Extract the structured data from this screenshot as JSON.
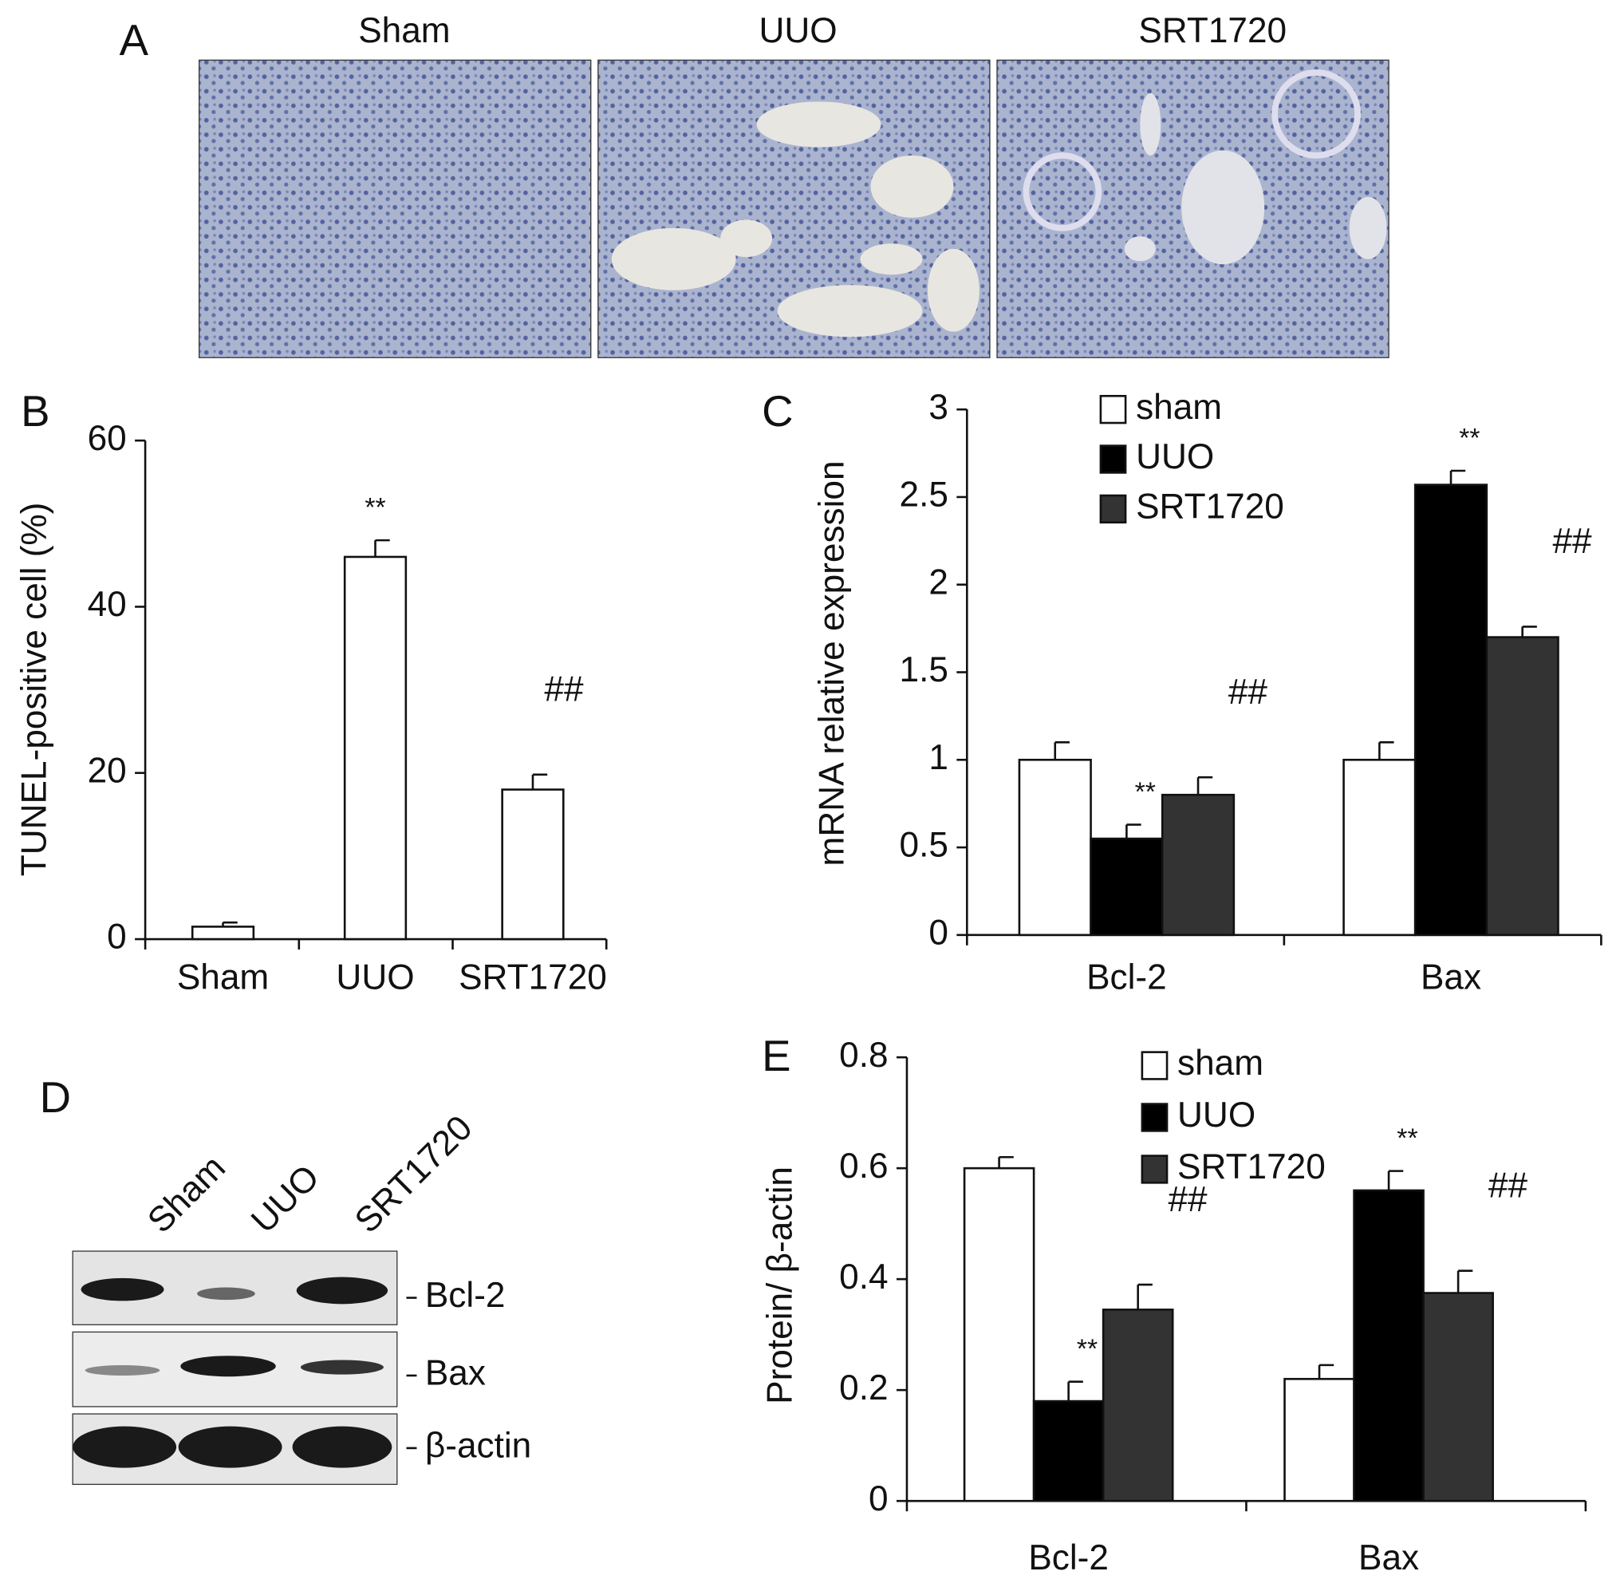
{
  "panels": {
    "A": {
      "letter": "A",
      "labels": [
        "Sham",
        "UUO",
        "SRT1720"
      ]
    },
    "D": {
      "letter": "D",
      "lanes": [
        "Sham",
        "UUO",
        "SRT1720"
      ],
      "bands": [
        "Bcl-2",
        "Bax",
        "β-actin"
      ]
    }
  },
  "chart_data": [
    {
      "type": "bar",
      "letter": "B",
      "ylabel": "TUNEL-positive cell (%)",
      "categories": [
        "Sham",
        "UUO",
        "SRT1720"
      ],
      "values": [
        1.5,
        46,
        18
      ],
      "errors": [
        0.5,
        2,
        1.8
      ],
      "annotations": [
        null,
        "**",
        "##"
      ],
      "color": "#ffffff",
      "ylim": [
        0,
        60
      ],
      "yticks": [
        0,
        20,
        40,
        60
      ]
    },
    {
      "type": "grouped_bar",
      "letter": "C",
      "ylabel": "mRNA relative expression",
      "categories": [
        "Bcl-2",
        "Bax"
      ],
      "series": [
        {
          "name": "sham",
          "color": "#ffffff",
          "values": [
            1,
            1
          ],
          "errors": [
            0.1,
            0.1
          ],
          "annotations": [
            null,
            null
          ]
        },
        {
          "name": "UUO",
          "color": "#000000",
          "values": [
            0.55,
            2.57
          ],
          "errors": [
            0.08,
            0.08
          ],
          "annotations": [
            "**",
            "**"
          ]
        },
        {
          "name": "SRT1720",
          "color": "#333333",
          "values": [
            0.8,
            1.7
          ],
          "errors": [
            0.1,
            0.06
          ],
          "annotations": [
            "##",
            "##"
          ]
        }
      ],
      "ylim": [
        0,
        3
      ],
      "yticks": [
        0,
        0.5,
        1,
        1.5,
        2,
        2.5,
        3
      ]
    },
    {
      "type": "grouped_bar",
      "letter": "E",
      "ylabel": "Protein/ β-actin",
      "categories": [
        "Bcl-2",
        "Bax"
      ],
      "series": [
        {
          "name": "sham",
          "color": "#ffffff",
          "values": [
            0.6,
            0.22
          ],
          "errors": [
            0.02,
            0.025
          ],
          "annotations": [
            null,
            null
          ]
        },
        {
          "name": "UUO",
          "color": "#000000",
          "values": [
            0.18,
            0.56
          ],
          "errors": [
            0.035,
            0.035
          ],
          "annotations": [
            "**",
            "**"
          ]
        },
        {
          "name": "SRT1720",
          "color": "#333333",
          "values": [
            0.345,
            0.375
          ],
          "errors": [
            0.045,
            0.04
          ],
          "annotations": [
            "##",
            "##"
          ]
        }
      ],
      "ylim": [
        0,
        0.8
      ],
      "yticks": [
        0,
        0.2,
        0.4,
        0.6,
        0.8
      ]
    }
  ]
}
